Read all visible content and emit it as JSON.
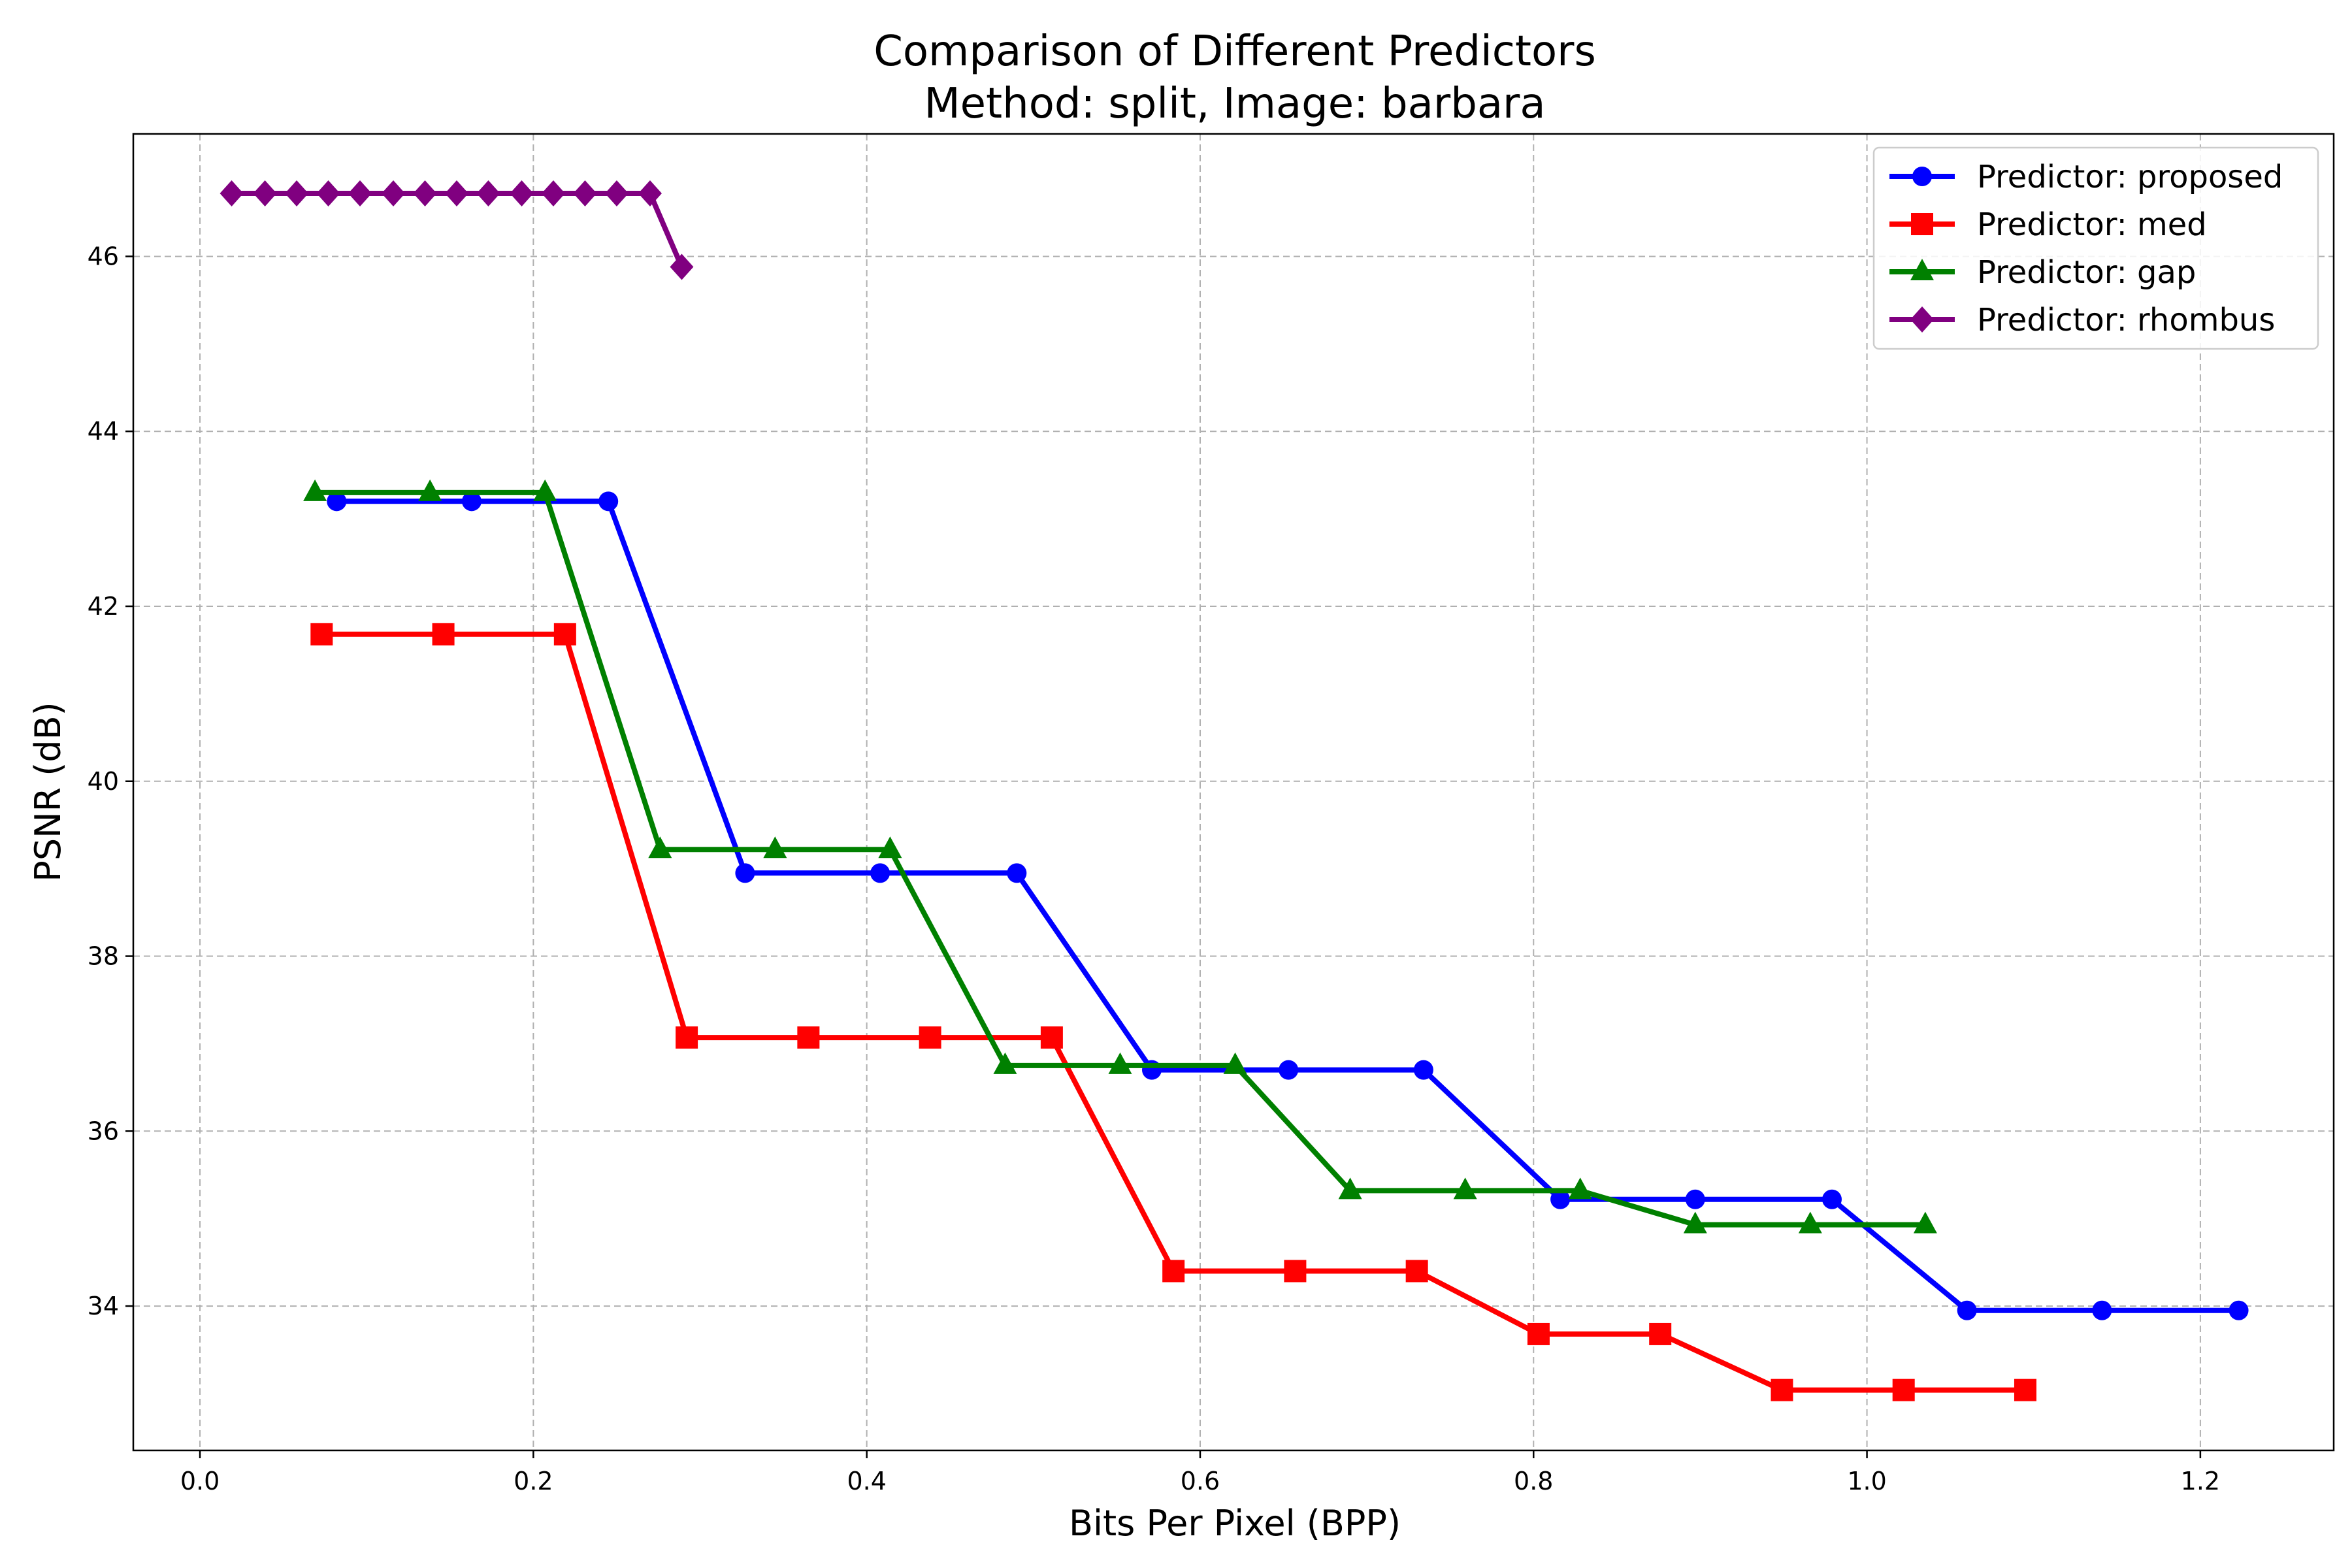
{
  "chart_data": {
    "type": "line",
    "title": "Comparison of Different Predictors",
    "subtitle": "Method: split, Image: barbara",
    "xlabel": "Bits Per Pixel (BPP)",
    "ylabel": "PSNR (dB)",
    "xlim": [
      -0.04,
      1.28
    ],
    "ylim": [
      32.35,
      47.4
    ],
    "xticks": [
      "0.0",
      "0.2",
      "0.4",
      "0.6",
      "0.8",
      "1.0",
      "1.2"
    ],
    "yticks": [
      "34",
      "36",
      "38",
      "40",
      "42",
      "44",
      "46"
    ],
    "grid": true,
    "legend_position": "top-right",
    "series": [
      {
        "name": "Predictor: proposed",
        "color": "#0000ff",
        "marker": "circle",
        "x": [
          0.082,
          0.163,
          0.245,
          0.327,
          0.408,
          0.49,
          0.571,
          0.653,
          0.734,
          0.816,
          0.897,
          0.979,
          1.06,
          1.141,
          1.223
        ],
        "y": [
          43.2,
          43.2,
          43.2,
          38.95,
          38.95,
          38.95,
          36.7,
          36.7,
          36.7,
          35.22,
          35.22,
          35.22,
          33.95,
          33.95,
          33.95
        ]
      },
      {
        "name": "Predictor: med",
        "color": "#ff0000",
        "marker": "square",
        "x": [
          0.073,
          0.146,
          0.219,
          0.292,
          0.365,
          0.438,
          0.511,
          0.584,
          0.657,
          0.73,
          0.803,
          0.876,
          0.949,
          1.022,
          1.095
        ],
        "y": [
          41.68,
          41.68,
          41.68,
          37.07,
          37.07,
          37.07,
          37.07,
          34.4,
          34.4,
          34.4,
          33.68,
          33.68,
          33.04,
          33.04,
          33.04
        ]
      },
      {
        "name": "Predictor: gap",
        "color": "#008000",
        "marker": "triangle",
        "x": [
          0.069,
          0.138,
          0.207,
          0.276,
          0.345,
          0.414,
          0.483,
          0.552,
          0.621,
          0.69,
          0.759,
          0.828,
          0.897,
          0.966,
          1.035
        ],
        "y": [
          43.3,
          43.3,
          43.3,
          39.22,
          39.22,
          39.22,
          36.75,
          36.75,
          36.75,
          35.32,
          35.32,
          35.32,
          34.93,
          34.93,
          34.93
        ]
      },
      {
        "name": "Predictor: rhombus",
        "color": "#800080",
        "marker": "diamond",
        "x": [
          0.019,
          0.039,
          0.058,
          0.077,
          0.096,
          0.116,
          0.135,
          0.154,
          0.173,
          0.193,
          0.212,
          0.231,
          0.25,
          0.27,
          0.289
        ],
        "y": [
          46.72,
          46.72,
          46.72,
          46.72,
          46.72,
          46.72,
          46.72,
          46.72,
          46.72,
          46.72,
          46.72,
          46.72,
          46.72,
          46.72,
          45.88
        ]
      }
    ]
  }
}
